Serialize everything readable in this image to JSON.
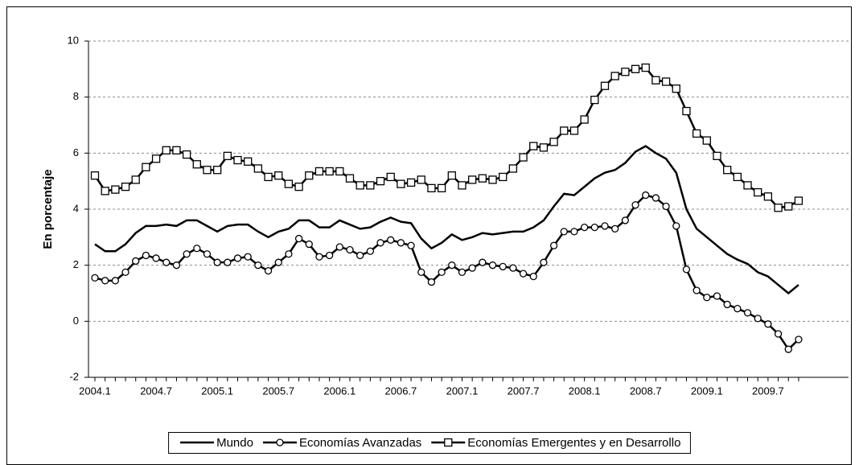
{
  "chart_data": {
    "type": "line",
    "y_label": "En porcentaje",
    "categories": [
      "2004.1",
      null,
      null,
      null,
      null,
      null,
      "2004.7",
      null,
      null,
      null,
      null,
      null,
      "2005.1",
      null,
      null,
      null,
      null,
      null,
      "2005.7",
      null,
      null,
      null,
      null,
      null,
      "2006.1",
      null,
      null,
      null,
      null,
      null,
      "2006.7",
      null,
      null,
      null,
      null,
      null,
      "2007.1",
      null,
      null,
      null,
      null,
      null,
      "2007.7",
      null,
      null,
      null,
      null,
      null,
      "2008.1",
      null,
      null,
      null,
      null,
      null,
      "2008.7",
      null,
      null,
      null,
      null,
      null,
      "2009.1",
      null,
      null,
      null,
      null,
      null,
      "2009.7",
      null,
      null,
      null
    ],
    "series": [
      {
        "name": "Mundo",
        "color": "#000000",
        "marker": "none",
        "values": [
          2.75,
          2.5,
          2.5,
          2.75,
          3.15,
          3.4,
          3.4,
          3.45,
          3.4,
          3.6,
          3.6,
          3.4,
          3.2,
          3.4,
          3.45,
          3.45,
          3.2,
          3.0,
          3.2,
          3.3,
          3.6,
          3.6,
          3.35,
          3.35,
          3.6,
          3.45,
          3.3,
          3.35,
          3.55,
          3.7,
          3.55,
          3.5,
          2.95,
          2.6,
          2.8,
          3.1,
          2.9,
          3.0,
          3.15,
          3.1,
          3.15,
          3.2,
          3.2,
          3.35,
          3.6,
          4.1,
          4.55,
          4.5,
          4.8,
          5.1,
          5.3,
          5.4,
          5.65,
          6.05,
          6.25,
          6.0,
          5.8,
          5.3,
          4.0,
          3.3,
          3.0,
          2.7,
          2.4,
          2.2,
          2.05,
          1.75,
          1.6,
          1.3,
          1.0,
          1.3
        ]
      },
      {
        "name": "Economías Avanzadas",
        "color": "#000000",
        "marker": "circle",
        "values": [
          1.55,
          1.45,
          1.45,
          1.75,
          2.15,
          2.35,
          2.25,
          2.1,
          2.0,
          2.4,
          2.6,
          2.4,
          2.1,
          2.1,
          2.25,
          2.3,
          2.0,
          1.8,
          2.1,
          2.4,
          2.95,
          2.75,
          2.3,
          2.35,
          2.65,
          2.55,
          2.35,
          2.5,
          2.8,
          2.9,
          2.8,
          2.7,
          1.75,
          1.4,
          1.75,
          2.0,
          1.75,
          1.9,
          2.1,
          2.0,
          1.95,
          1.9,
          1.7,
          1.6,
          2.1,
          2.7,
          3.2,
          3.2,
          3.35,
          3.35,
          3.4,
          3.3,
          3.6,
          4.15,
          4.5,
          4.4,
          4.1,
          3.4,
          1.85,
          1.1,
          0.85,
          0.9,
          0.6,
          0.45,
          0.3,
          0.1,
          -0.1,
          -0.45,
          -1.0,
          -0.65
        ]
      },
      {
        "name": "Economías Emergentes y en Desarrollo",
        "color": "#000000",
        "marker": "square",
        "values": [
          5.2,
          4.65,
          4.7,
          4.8,
          5.05,
          5.5,
          5.8,
          6.1,
          6.1,
          5.95,
          5.6,
          5.4,
          5.4,
          5.9,
          5.75,
          5.7,
          5.45,
          5.15,
          5.2,
          4.9,
          4.8,
          5.2,
          5.35,
          5.35,
          5.35,
          5.1,
          4.85,
          4.85,
          5.0,
          5.15,
          4.9,
          4.95,
          5.05,
          4.75,
          4.75,
          5.2,
          4.85,
          5.05,
          5.1,
          5.05,
          5.15,
          5.45,
          5.85,
          6.25,
          6.2,
          6.4,
          6.8,
          6.8,
          7.2,
          7.9,
          8.4,
          8.75,
          8.9,
          9.0,
          9.05,
          8.6,
          8.55,
          8.3,
          7.5,
          6.7,
          6.45,
          5.9,
          5.4,
          5.15,
          4.85,
          4.6,
          4.45,
          4.05,
          4.1,
          4.3
        ]
      }
    ],
    "ylim": [
      -2,
      10
    ],
    "yticks": [
      -2,
      0,
      2,
      4,
      6,
      8,
      10
    ],
    "grid": true,
    "legend": "bottom"
  }
}
